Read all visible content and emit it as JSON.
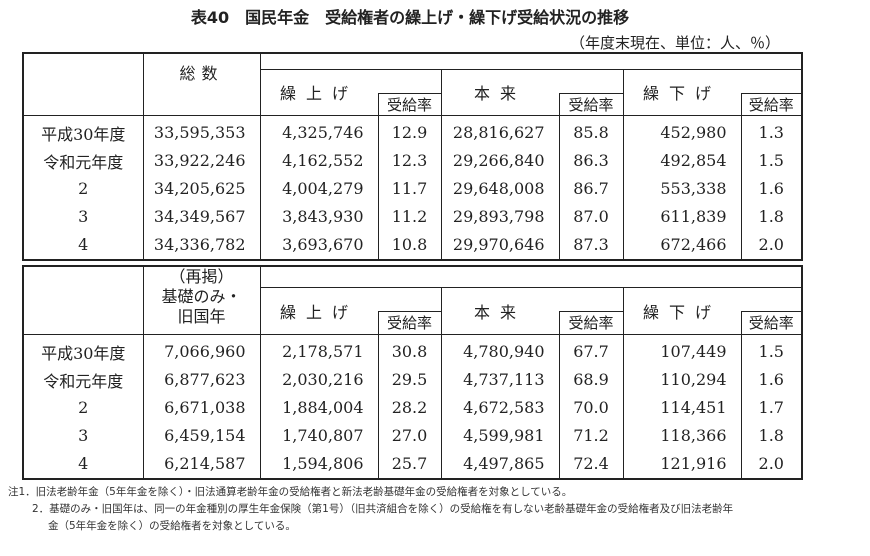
{
  "title": "表40　国民年金　受給権者の繰上げ・繰下げ受給状況の推移",
  "unit": "（年度末現在、単位：人、％）",
  "headers": {
    "kuriage": "繰上げ",
    "rate": "受給率",
    "honrai": "本来",
    "kurisage": "繰下げ"
  },
  "table1": {
    "total_header": "総数",
    "rows": [
      [
        "平成30年度",
        "33,595,353",
        "4,325,746",
        "12.9",
        "28,816,627",
        "85.8",
        "452,980",
        "1.3"
      ],
      [
        "令和元年度",
        "33,922,246",
        "4,162,552",
        "12.3",
        "29,266,840",
        "86.3",
        "492,854",
        "1.5"
      ],
      [
        "2",
        "34,205,625",
        "4,004,279",
        "11.7",
        "29,648,008",
        "86.7",
        "553,338",
        "1.6"
      ],
      [
        "3",
        "34,349,567",
        "3,843,930",
        "11.2",
        "29,893,798",
        "87.0",
        "611,839",
        "1.8"
      ],
      [
        "4",
        "34,336,782",
        "3,693,670",
        "10.8",
        "29,970,646",
        "87.3",
        "672,466",
        "2.0"
      ]
    ]
  },
  "table2": {
    "total_header_1": "（再掲）",
    "total_header_2": "基礎のみ・",
    "total_header_3": "旧国年",
    "rows": [
      [
        "平成30年度",
        "7,066,960",
        "2,178,571",
        "30.8",
        "4,780,940",
        "67.7",
        "107,449",
        "1.5"
      ],
      [
        "令和元年度",
        "6,877,623",
        "2,030,216",
        "29.5",
        "4,737,113",
        "68.9",
        "110,294",
        "1.6"
      ],
      [
        "2",
        "6,671,038",
        "1,884,004",
        "28.2",
        "4,672,583",
        "70.0",
        "114,451",
        "1.7"
      ],
      [
        "3",
        "6,459,154",
        "1,740,807",
        "27.0",
        "4,599,981",
        "71.2",
        "118,366",
        "1.8"
      ],
      [
        "4",
        "6,214,587",
        "1,594,806",
        "25.7",
        "4,497,865",
        "72.4",
        "121,916",
        "2.0"
      ]
    ]
  },
  "notes": [
    "注1．旧法老齢年金（5年年金を除く）・旧法通算老齢年金の受給権者と新法老齢基礎年金の受給権者を対象としている。",
    "2．基礎のみ・旧国年は、同一の年金種別の厚生年金保険（第1号）（旧共済組合を除く）の受給権を有しない老齢基礎年金の受給権者及び旧法老齢年",
    "金（5年年金を除く）の受給権者を対象としている。"
  ]
}
